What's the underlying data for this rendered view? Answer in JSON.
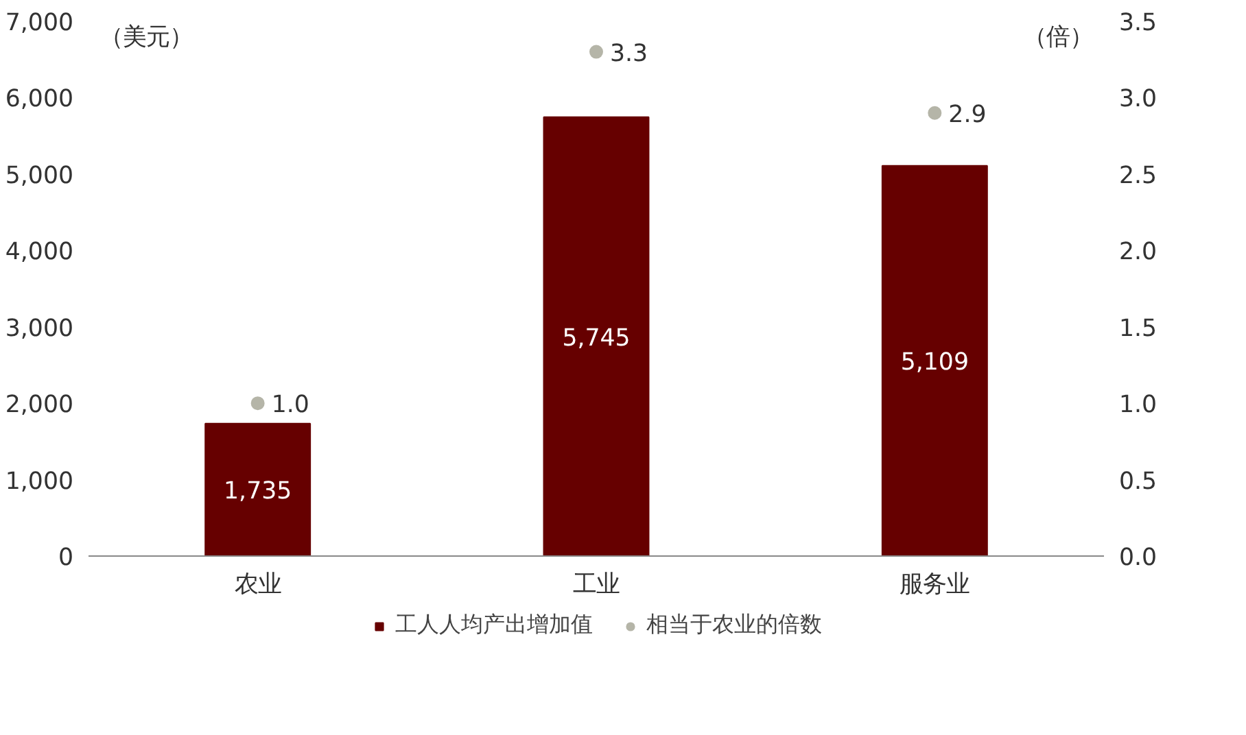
{
  "chart_data": {
    "type": "bar",
    "categories": [
      "农业",
      "工业",
      "服务业"
    ],
    "ylabel": "（美元）",
    "y2label": "（倍）",
    "series": [
      {
        "name": "工人人均产出增加值",
        "color": "#660000",
        "values": [
          1735,
          5745,
          5109
        ],
        "value_labels": [
          "1,735",
          "5,745",
          "5,109"
        ]
      },
      {
        "name": "相当于农业的倍数",
        "type": "scatter",
        "axis": "y2",
        "color": "#b5b5a8",
        "values": [
          1.0,
          3.3,
          2.9
        ],
        "value_labels": [
          "1.0",
          "3.3",
          "2.9"
        ]
      }
    ],
    "ylim": [
      0,
      7000
    ],
    "yticks": [
      {
        "value": 0,
        "label": "0"
      },
      {
        "value": 1000,
        "label": "1,000"
      },
      {
        "value": 2000,
        "label": "2,000"
      },
      {
        "value": 3000,
        "label": "3,000"
      },
      {
        "value": 4000,
        "label": "4,000"
      },
      {
        "value": 5000,
        "label": "5,000"
      },
      {
        "value": 6000,
        "label": "6,000"
      },
      {
        "value": 7000,
        "label": "7,000"
      }
    ],
    "y2lim": [
      0,
      3.5
    ],
    "y2ticks": [
      {
        "value": 0,
        "label": "0.0"
      },
      {
        "value": 0.5,
        "label": "0.5"
      },
      {
        "value": 1.0,
        "label": "1.0"
      },
      {
        "value": 1.5,
        "label": "1.5"
      },
      {
        "value": 2.0,
        "label": "2.0"
      },
      {
        "value": 2.5,
        "label": "2.5"
      },
      {
        "value": 3.0,
        "label": "3.0"
      },
      {
        "value": 3.5,
        "label": "3.5"
      }
    ],
    "grid": false,
    "legend": "bottom",
    "marker": "circle"
  }
}
